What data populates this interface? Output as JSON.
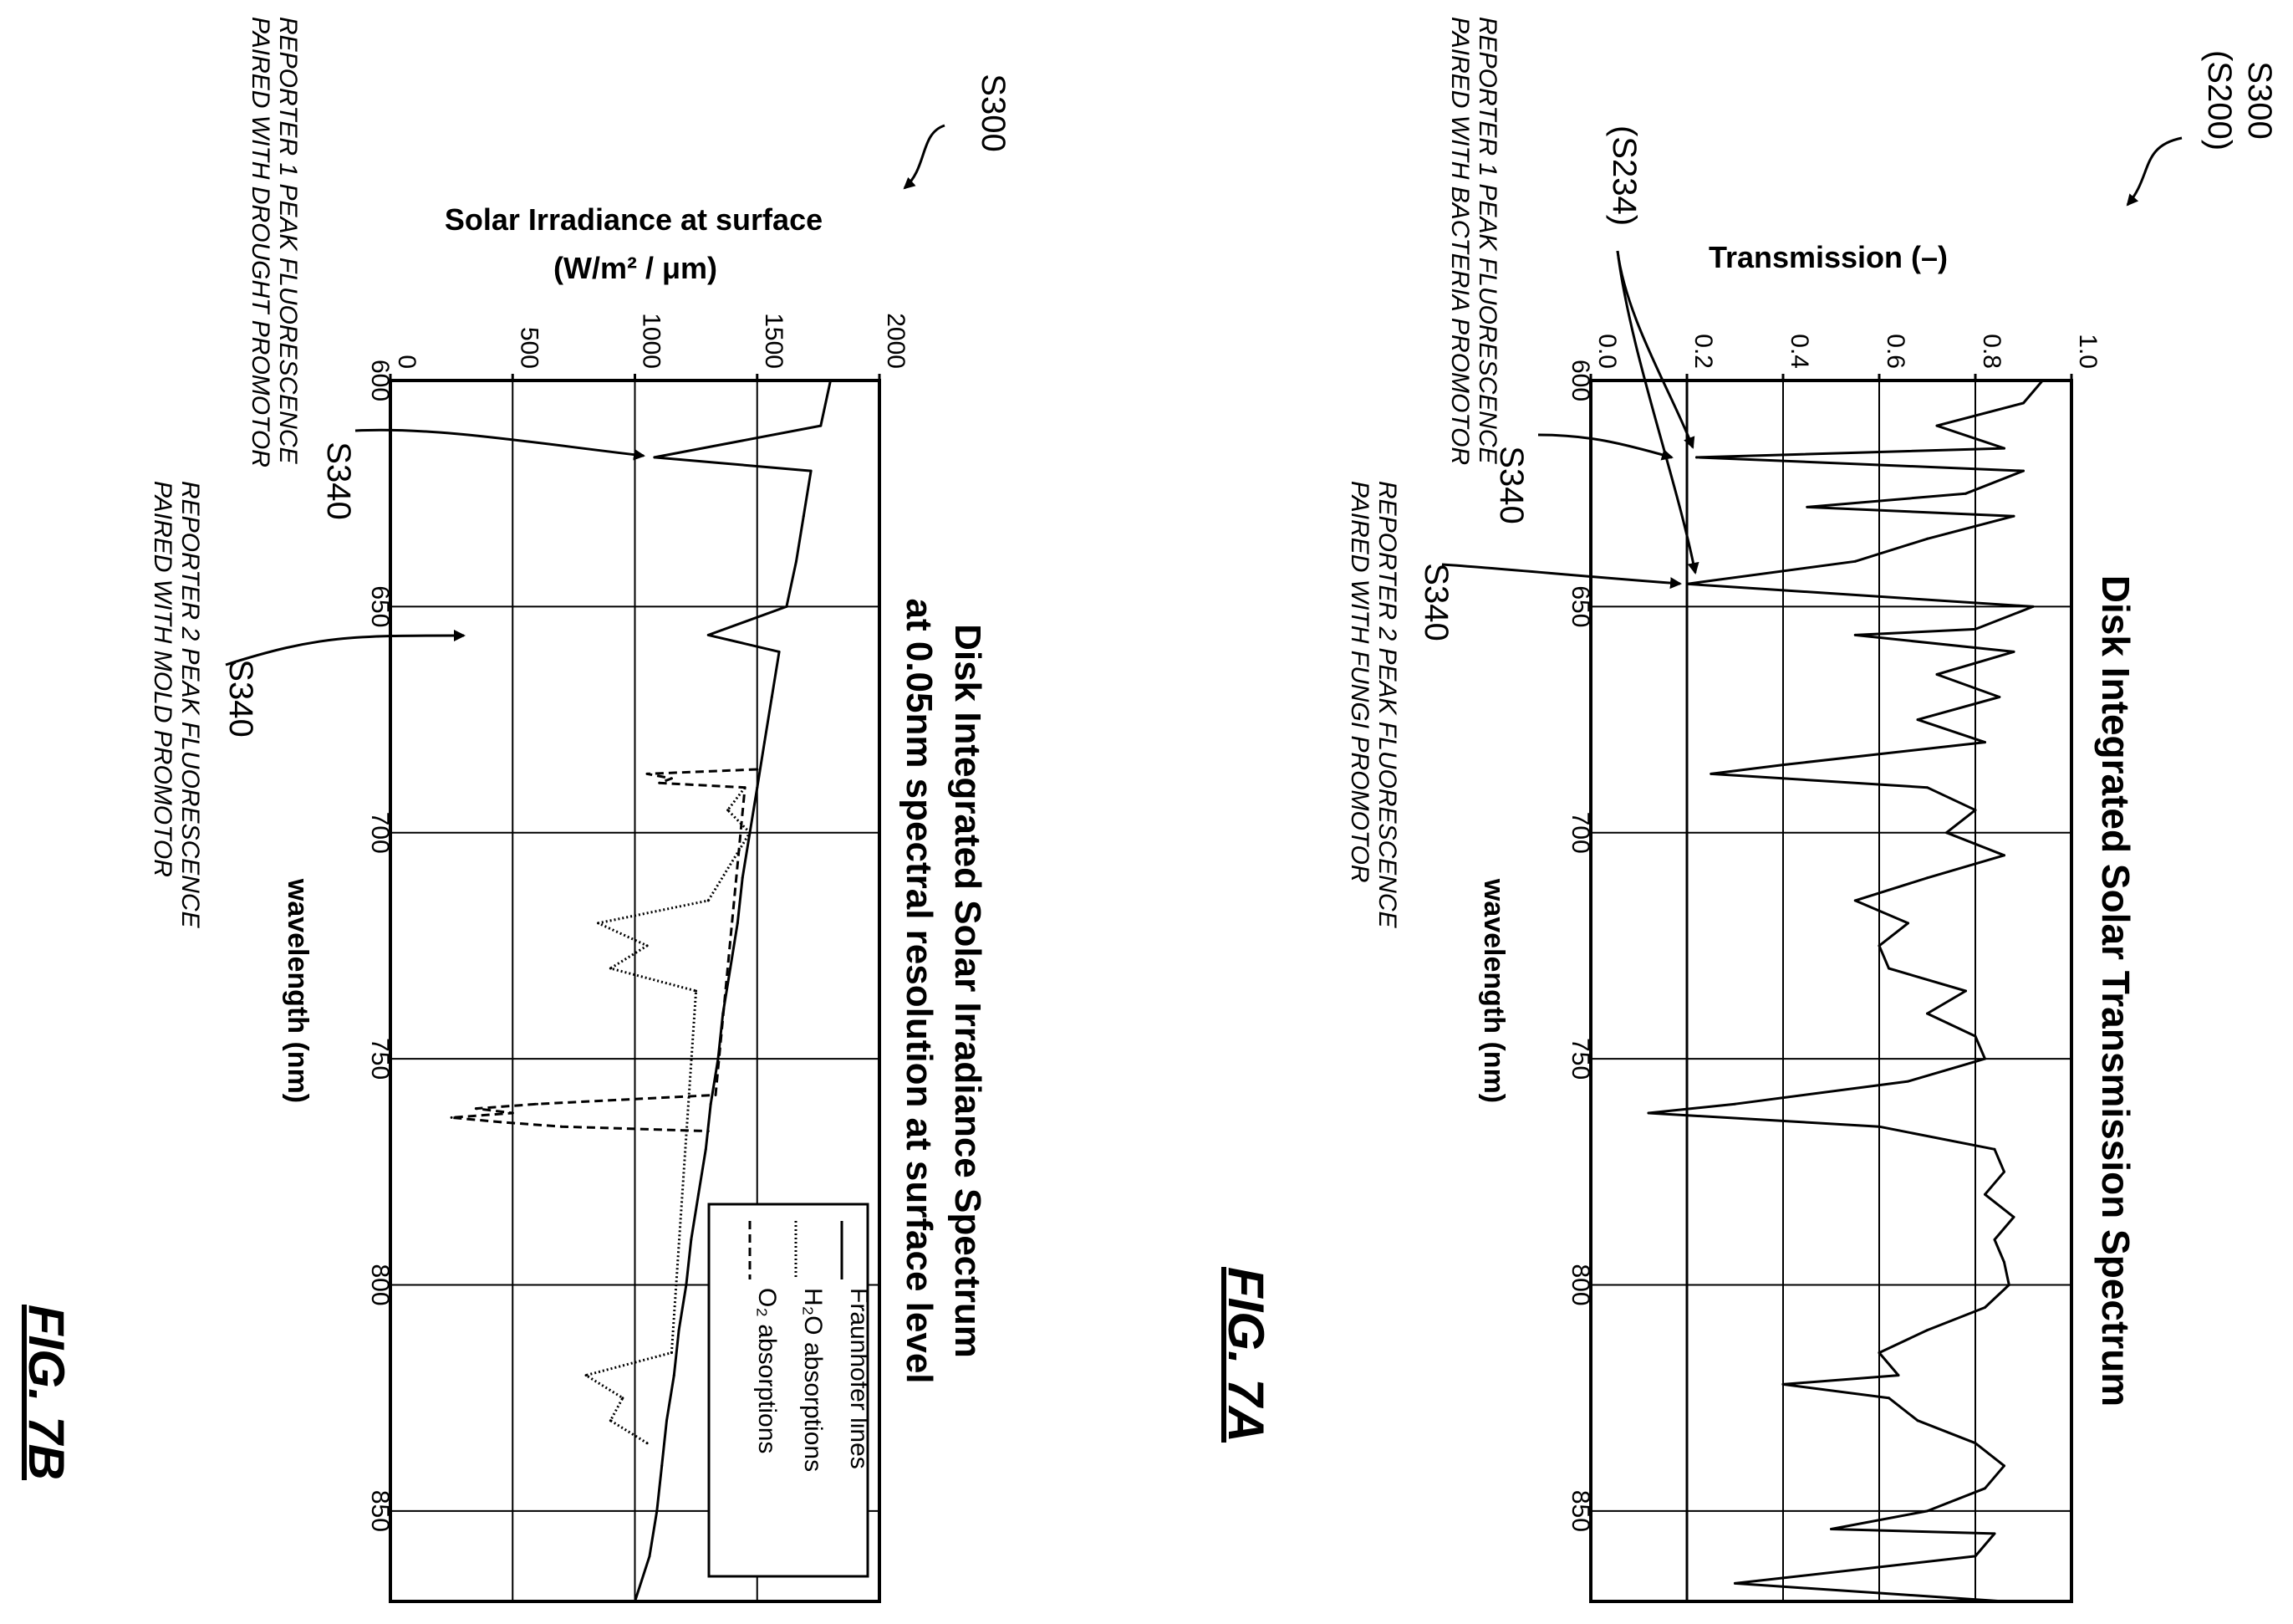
{
  "figures": [
    {
      "id": "fig-7a",
      "figure_label": "FIG. 7A",
      "ref_label_top": "S300",
      "ref_label_sub": "(S200)",
      "ref_label_threshold": "(S234)",
      "annotations": [
        {
          "ref": "S340",
          "text_line1": "REPORTER 1 PEAK FLUORESCENCE",
          "text_line2": "PAIRED WITH BACTERIA PROMOTOR"
        },
        {
          "ref": "S340",
          "text_line1": "REPORTER 2 PEAK FLUORESCENCE",
          "text_line2": "PAIRED WITH FUNGI PROMOTOR"
        }
      ]
    },
    {
      "id": "fig-7b",
      "figure_label": "FIG. 7B",
      "ref_label_top": "S300",
      "annotations": [
        {
          "ref": "S340",
          "text_line1": "REPORTER 1 PEAK FLUORESCENCE",
          "text_line2": "PAIRED WITH DROUGHT PROMOTOR"
        },
        {
          "ref": "S340",
          "text_line1": "REPORTER 2 PEAK FLUORESCENCE",
          "text_line2": "PAIRED WITH MOLD PROMOTOR"
        }
      ]
    }
  ],
  "chart_data": [
    {
      "type": "line",
      "title": "Disk Integrated Solar Transmission Spectrum",
      "xlabel": "wavelength (nm)",
      "ylabel": "Transmission (–)",
      "xlim": [
        600,
        870
      ],
      "ylim": [
        0.0,
        1.0
      ],
      "xticks": [
        "600",
        "650",
        "700",
        "750",
        "800",
        "850"
      ],
      "yticks": [
        "0.0",
        "0.2",
        "0.4",
        "0.6",
        "0.8",
        "1.0"
      ],
      "grid": true,
      "reference_line_y": 0.2,
      "annotation_points": [
        {
          "ref": "S340",
          "x": 617,
          "y": 0.2
        },
        {
          "ref": "S340",
          "x": 645,
          "y": 0.2
        }
      ],
      "series": [
        {
          "style": "solid",
          "x": [
            600,
            605,
            610,
            615,
            617,
            620,
            625,
            628,
            630,
            635,
            640,
            645,
            650,
            655,
            656.3,
            660,
            665,
            670,
            675,
            680,
            685,
            687,
            690,
            695,
            700,
            705,
            710,
            715,
            720,
            725,
            730,
            735,
            740,
            745,
            750,
            755,
            760,
            762,
            765,
            770,
            775,
            780,
            785,
            790,
            795,
            800,
            805,
            810,
            815,
            820,
            822,
            825,
            830,
            835,
            840,
            845,
            850,
            854,
            855,
            860,
            866,
            870
          ],
          "y": [
            0.94,
            0.9,
            0.72,
            0.86,
            0.22,
            0.9,
            0.78,
            0.45,
            0.88,
            0.7,
            0.55,
            0.2,
            0.92,
            0.8,
            0.55,
            0.88,
            0.72,
            0.85,
            0.68,
            0.82,
            0.4,
            0.25,
            0.7,
            0.8,
            0.74,
            0.86,
            0.7,
            0.55,
            0.66,
            0.6,
            0.62,
            0.78,
            0.7,
            0.8,
            0.82,
            0.66,
            0.3,
            0.12,
            0.6,
            0.84,
            0.86,
            0.82,
            0.88,
            0.84,
            0.86,
            0.87,
            0.82,
            0.7,
            0.6,
            0.64,
            0.4,
            0.62,
            0.68,
            0.8,
            0.86,
            0.82,
            0.7,
            0.5,
            0.84,
            0.8,
            0.3,
            0.86
          ]
        }
      ]
    },
    {
      "type": "line",
      "title": "Disk Integrated Solar Irradiance Spectrum at 0.05nm spectral resolution at surface level",
      "title_line1": "Disk Integrated Solar Irradiance Spectrum",
      "title_line2": "at 0.05nm spectral resolution at surface level",
      "xlabel": "wavelength (nm)",
      "ylabel_line1": "Solar Irradiance at surface",
      "ylabel_line2": "(W/m² / μm)",
      "xlim": [
        600,
        870
      ],
      "ylim": [
        0,
        2000
      ],
      "xticks": [
        "600",
        "650",
        "700",
        "750",
        "800",
        "850"
      ],
      "yticks": [
        "0",
        "500",
        "1000",
        "1500",
        "2000"
      ],
      "grid": true,
      "legend_position": "bottom-right",
      "annotation_points": [
        {
          "ref": "S340",
          "x": 617,
          "y": 1000
        },
        {
          "ref": "S340",
          "x": 657,
          "y": 1700
        }
      ],
      "series": [
        {
          "name": "Fraunhofer lines",
          "style": "solid",
          "x": [
            600,
            610,
            617,
            620,
            630,
            640,
            650,
            656.3,
            660,
            670,
            680,
            690,
            700,
            710,
            720,
            730,
            740,
            750,
            760,
            770,
            780,
            790,
            800,
            810,
            820,
            830,
            840,
            850,
            860,
            870
          ],
          "y": [
            1800,
            1760,
            1080,
            1720,
            1690,
            1660,
            1620,
            1300,
            1590,
            1560,
            1530,
            1500,
            1470,
            1440,
            1420,
            1390,
            1360,
            1340,
            1310,
            1290,
            1260,
            1230,
            1210,
            1180,
            1160,
            1130,
            1110,
            1090,
            1060,
            1000
          ]
        },
        {
          "name": "H₂O absorptions",
          "style": "dotted",
          "x": [
            690,
            695,
            700,
            715,
            720,
            725,
            730,
            735,
            815,
            820,
            825,
            830,
            835
          ],
          "y": [
            1450,
            1380,
            1470,
            1300,
            850,
            1050,
            900,
            1250,
            1150,
            800,
            950,
            900,
            1050
          ]
        },
        {
          "name": "O₂ absorptions",
          "style": "dashed",
          "x": [
            686,
            687,
            688,
            689,
            690,
            758,
            760,
            761,
            762,
            763,
            764,
            765,
            766
          ],
          "y": [
            1500,
            1050,
            1150,
            1100,
            1450,
            1330,
            600,
            350,
            500,
            250,
            450,
            700,
            1300
          ]
        }
      ]
    }
  ]
}
